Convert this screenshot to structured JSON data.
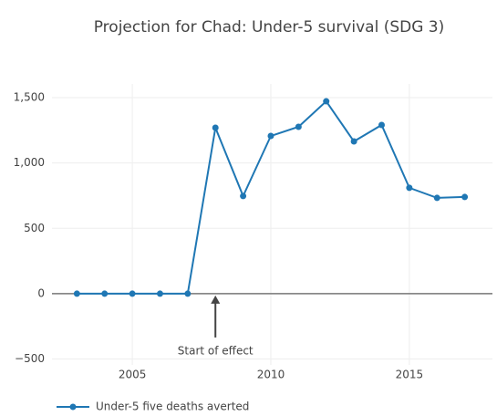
{
  "chart_data": {
    "type": "line",
    "title": "Projection for Chad: Under-5 survival (SDG 3)",
    "x": [
      2003,
      2004,
      2005,
      2006,
      2007,
      2008,
      2009,
      2010,
      2011,
      2012,
      2013,
      2014,
      2015,
      2016,
      2017
    ],
    "series": [
      {
        "name": "Under-5 five deaths averted",
        "color": "#1f77b4",
        "values": [
          0,
          0,
          0,
          0,
          0,
          1270,
          747,
          1207,
          1277,
          1472,
          1165,
          1291,
          810,
          733,
          740
        ]
      }
    ],
    "xlim": [
      2002.1,
      2018
    ],
    "xticks": [
      2005,
      2010,
      2015
    ],
    "ylim": [
      -545,
      1605
    ],
    "yticks": [
      {
        "value": -500,
        "label": "−500"
      },
      0,
      500,
      {
        "value": 1000,
        "label": "1,000"
      },
      {
        "value": 1500,
        "label": "1,500"
      }
    ],
    "grid": true,
    "legend": "bottom-left",
    "annotations": [
      {
        "text": "Start of effect",
        "x": 2008,
        "y": 0
      }
    ]
  }
}
